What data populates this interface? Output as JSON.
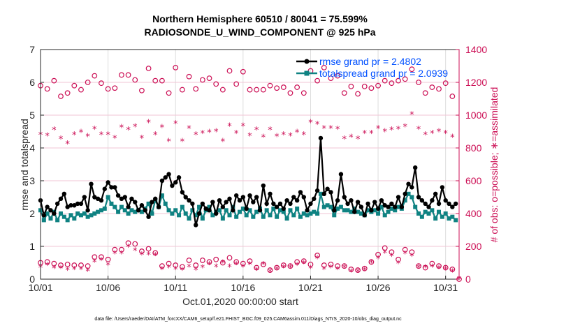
{
  "chart_data": {
    "type": "line",
    "title": [
      "Northern Hemisphere 60510 / 80041 = 75.599%",
      "RADIOSONDE_U_WIND_COMPONENT @ 925 hPa"
    ],
    "xlabel": "Oct.01,2020 00:00:00 start",
    "ylabel": "rmse and totalspread",
    "ylabel_right": "# of obs: o=possible; ∗=assimilated",
    "footer": "data file: /Users/raeder/DAI/ATM_forcXX/CAM6_setup/f.e21.FHIST_BGC.f09_025.CAM6assim.011/Diags_NTrS_2020-10/obs_diag_output.nc",
    "x_tick_labels": [
      "10/01",
      "10/06",
      "10/11",
      "10/16",
      "10/21",
      "10/26",
      "10/31"
    ],
    "x_tick_days": [
      0,
      5,
      10,
      15,
      20,
      25,
      30
    ],
    "xlim_days": [
      0,
      31
    ],
    "ylim": [
      0,
      7
    ],
    "y_ticks": [
      0,
      1,
      2,
      3,
      4,
      5,
      6,
      7
    ],
    "ylim_right": [
      0,
      1400
    ],
    "y_ticks_right": [
      0,
      200,
      400,
      600,
      800,
      1000,
      1200,
      1400
    ],
    "grid": true,
    "legend_position": "top-right",
    "colors": {
      "rmse": "#000000",
      "spread": "#0f8282",
      "obs": "#cc0f55",
      "legend_text": "#0050ff",
      "grid": "#f2c6d6"
    },
    "series": [
      {
        "name": "rmse grand pr = 2.4802",
        "step_days": 0.25,
        "values": [
          2.4,
          1.95,
          2.2,
          2.1,
          2.0,
          2.3,
          2.45,
          2.6,
          2.2,
          2.25,
          2.25,
          2.3,
          2.3,
          2.5,
          2.1,
          2.9,
          2.5,
          2.45,
          2.4,
          2.75,
          2.95,
          2.8,
          2.8,
          2.55,
          2.45,
          2.5,
          2.2,
          2.45,
          2.35,
          2.1,
          2.25,
          2.1,
          1.9,
          2.35,
          2.45,
          2.2,
          3.0,
          3.1,
          3.2,
          2.85,
          2.95,
          3.1,
          2.65,
          2.5,
          2.4,
          2.3,
          1.65,
          2.0,
          2.3,
          2.15,
          2.1,
          2.35,
          2.0,
          2.4,
          2.2,
          2.35,
          2.45,
          2.1,
          2.55,
          2.4,
          2.5,
          2.15,
          2.55,
          2.35,
          2.5,
          2.1,
          2.85,
          2.3,
          2.6,
          2.3,
          2.2,
          2.3,
          2.15,
          2.4,
          2.3,
          2.5,
          2.4,
          2.65,
          2.5,
          2.1,
          2.3,
          2.45,
          2.7,
          4.3,
          2.6,
          2.75,
          2.65,
          2.1,
          2.4,
          3.2,
          2.5,
          2.3,
          2.4,
          2.05,
          2.35,
          2.2,
          1.95,
          2.3,
          2.1,
          2.35,
          2.15,
          2.4,
          2.25,
          2.2,
          2.3,
          2.2,
          2.5,
          2.2,
          2.6,
          2.9,
          2.8,
          3.4,
          2.5,
          2.4,
          2.3,
          2.2,
          2.4,
          2.6,
          2.3,
          2.8,
          2.4,
          2.3,
          2.2,
          2.3
        ]
      },
      {
        "name": "totalspread grand pr = 2.0939",
        "step_days": 0.25,
        "values": [
          2.1,
          1.8,
          2.0,
          1.85,
          2.05,
          1.8,
          2.0,
          1.9,
          1.8,
          1.95,
          1.85,
          2.0,
          1.95,
          2.0,
          1.9,
          1.95,
          2.0,
          2.05,
          2.1,
          2.15,
          2.5,
          2.3,
          2.2,
          2.05,
          2.2,
          2.1,
          2.0,
          2.1,
          2.05,
          2.1,
          2.05,
          2.15,
          2.3,
          2.0,
          2.4,
          2.2,
          2.55,
          2.3,
          2.1,
          2.0,
          2.1,
          1.95,
          2.2,
          2.0,
          1.85,
          2.1,
          1.95,
          2.2,
          1.85,
          2.1,
          2.2,
          1.95,
          2.05,
          2.1,
          1.85,
          2.1,
          1.95,
          2.2,
          1.9,
          2.05,
          2.15,
          1.95,
          2.1,
          1.9,
          2.05,
          2.15,
          1.9,
          2.1,
          1.95,
          2.15,
          1.9,
          2.1,
          2.05,
          1.85,
          2.1,
          1.95,
          2.15,
          1.9,
          2.0,
          1.95,
          2.0,
          2.05,
          2.0,
          2.6,
          2.2,
          2.25,
          2.2,
          1.95,
          2.15,
          2.2,
          2.1,
          2.1,
          2.05,
          2.15,
          2.05,
          2.0,
          1.95,
          2.1,
          2.05,
          2.1,
          2.0,
          2.2,
          1.95,
          2.05,
          2.15,
          2.1,
          2.2,
          2.15,
          2.4,
          2.6,
          2.5,
          2.2,
          2.0,
          1.9,
          2.05,
          2.0,
          2.1,
          1.85,
          2.05,
          1.9,
          2.0,
          1.85,
          1.9,
          1.8
        ]
      },
      {
        "name": "obs possible (top band)",
        "axis": "right",
        "marker": "o",
        "start_day": 0,
        "step_days": 0.5,
        "values": [
          1180,
          1160,
          1210,
          1115,
          1135,
          1180,
          1155,
          1200,
          1240,
          1195,
          1160,
          1165,
          1245,
          1245,
          1215,
          1150,
          1285,
          1210,
          1210,
          1135,
          1290,
          1155,
          1235,
          1160,
          1215,
          1225,
          1190,
          1155,
          1270,
          1190,
          1265,
          1155,
          1155,
          1155,
          1180,
          1165,
          1170,
          1135,
          1170,
          1135,
          1270,
          1210,
          1290,
          1225,
          1240,
          1135,
          1175,
          1130,
          1175,
          1165,
          1180,
          1210,
          1195,
          1210,
          1220,
          1280,
          1200,
          1135,
          1170,
          1160,
          1195,
          1115
        ]
      },
      {
        "name": "obs assimilated (top band)",
        "axis": "right",
        "marker": "*",
        "start_day": 0,
        "step_days": 0.5,
        "values": [
          880,
          875,
          910,
          855,
          825,
          880,
          895,
          870,
          915,
          880,
          880,
          860,
          925,
          910,
          930,
          860,
          955,
          880,
          925,
          840,
          950,
          840,
          920,
          880,
          890,
          895,
          900,
          840,
          935,
          890,
          935,
          875,
          910,
          865,
          910,
          870,
          880,
          875,
          895,
          880,
          955,
          945,
          920,
          920,
          915,
          855,
          865,
          855,
          890,
          890,
          920,
          900,
          910,
          915,
          930,
          1005,
          915,
          880,
          890,
          900,
          890,
          865
        ]
      },
      {
        "name": "obs possible (low band)",
        "axis": "right",
        "marker": "o",
        "start_day": 0,
        "step_days": 0.5,
        "values": [
          100,
          105,
          95,
          85,
          90,
          85,
          85,
          80,
          135,
          135,
          120,
          180,
          180,
          220,
          215,
          170,
          185,
          160,
          80,
          95,
          85,
          75,
          115,
          85,
          115,
          105,
          120,
          100,
          130,
          105,
          95,
          110,
          70,
          90,
          55,
          70,
          85,
          80,
          105,
          110,
          90,
          145,
          85,
          90,
          80,
          80,
          60,
          55,
          65,
          105,
          150,
          190,
          165,
          120,
          180,
          165,
          80,
          70,
          95,
          80,
          70,
          60,
          0
        ]
      },
      {
        "name": "obs assimilated (low band)",
        "axis": "right",
        "marker": "*",
        "start_day": 0,
        "step_days": 0.5,
        "values": [
          70,
          85,
          65,
          65,
          55,
          60,
          60,
          50,
          105,
          115,
          85,
          155,
          155,
          195,
          175,
          150,
          150,
          145,
          60,
          70,
          60,
          55,
          75,
          55,
          70,
          90,
          75,
          100,
          75,
          90,
          75,
          90,
          55,
          90,
          45,
          60,
          70,
          70,
          85,
          95,
          65,
          125,
          60,
          70,
          60,
          70,
          45,
          45,
          55,
          100,
          125,
          160,
          140,
          95,
          155,
          140,
          70,
          70,
          75,
          65,
          60,
          45,
          0
        ]
      }
    ]
  }
}
